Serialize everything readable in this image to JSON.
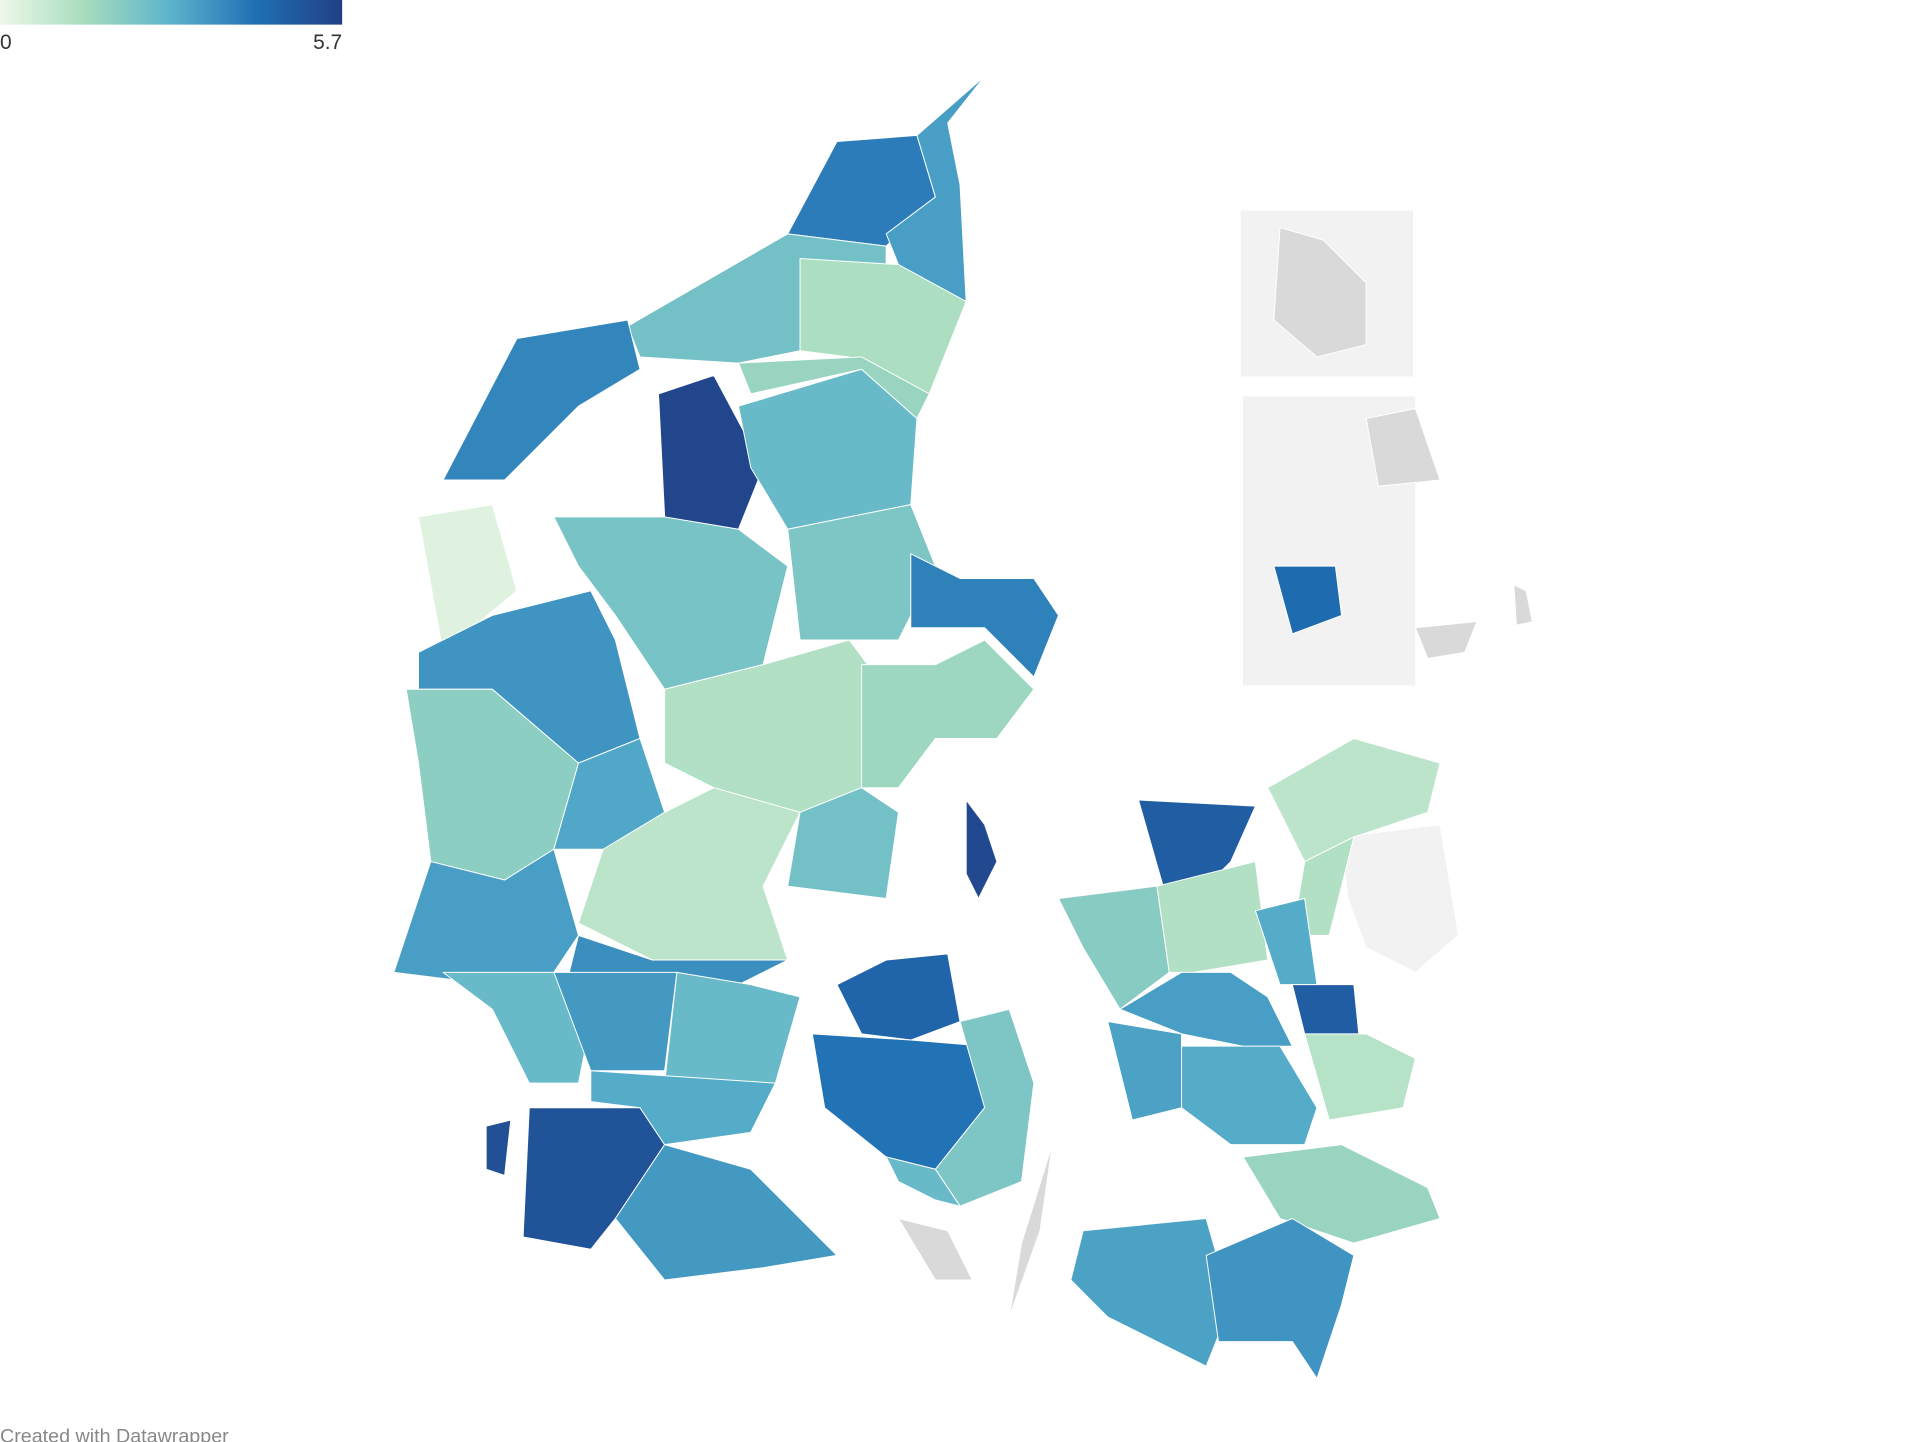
{
  "legend": {
    "min": 0,
    "max": 5.7,
    "colors": [
      "#eef8e8",
      "#a6dcbd",
      "#5bb3cb",
      "#1f6fb4",
      "#233f86"
    ]
  },
  "regions": {
    "values": [
      4.0,
      3.3,
      2.4,
      1.3,
      3.8,
      5.5,
      0.3,
      2.6,
      1.7,
      2.3,
      2.2,
      3.9,
      3.5,
      1.9,
      3.1,
      1.2,
      1.6,
      1.0,
      2.4,
      3.3,
      3.6,
      2.6,
      3.4,
      2.6,
      5.1,
      3.0,
      3.4,
      5.2,
      4.6,
      4.2,
      2.2,
      2.6,
      5.4,
      4.8,
      2.0,
      1.2,
      1.0,
      1.2,
      3.0,
      4.8,
      3.3,
      3.2,
      3.0,
      1.1,
      1.7,
      3.2,
      3.5,
      4.4
    ]
  },
  "credit": "Created with Datawrapper"
}
